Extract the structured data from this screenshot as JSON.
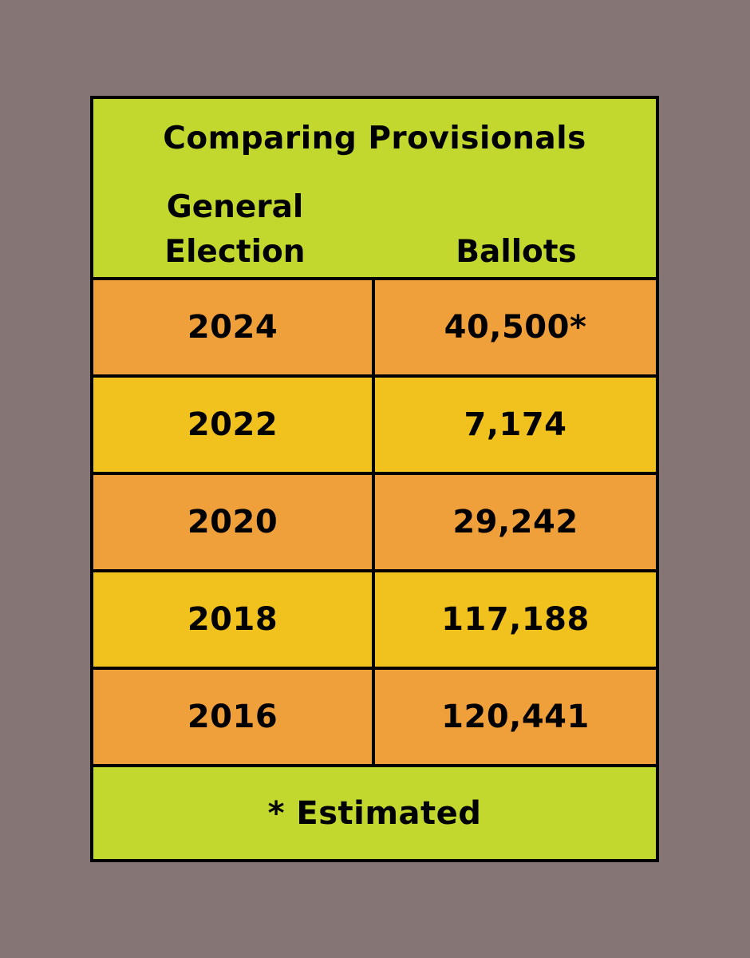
{
  "table": {
    "title": "Comparing Provisionals",
    "col_year_header": "General\nElection",
    "col_ballots_header": "Ballots",
    "rows": [
      {
        "year": "2024",
        "ballots": "40,500*"
      },
      {
        "year": "2022",
        "ballots": "7,174"
      },
      {
        "year": "2020",
        "ballots": "29,242"
      },
      {
        "year": "2018",
        "ballots": "117,188"
      },
      {
        "year": "2016",
        "ballots": "120,441"
      }
    ],
    "footnote": "* Estimated"
  },
  "colors": {
    "background": "#857575",
    "header_green": "#c2d82f",
    "row_orange": "#f0a03a",
    "row_yellow": "#f1c21d",
    "border": "#000000"
  }
}
